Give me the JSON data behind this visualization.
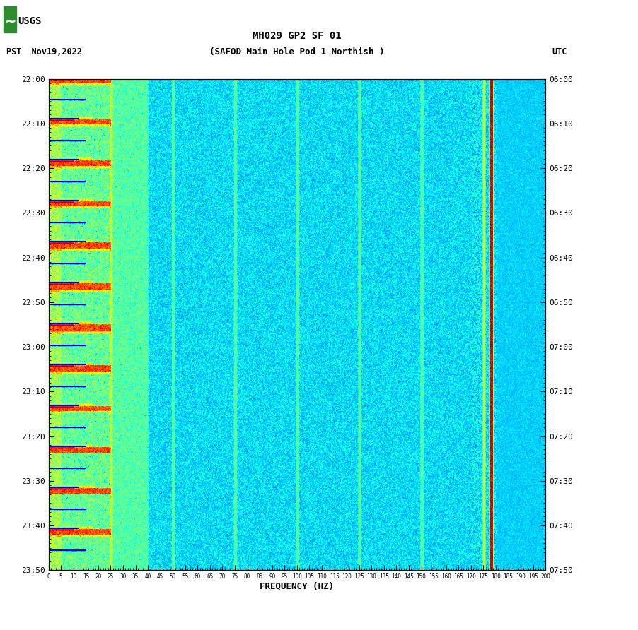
{
  "title_line1": "MH029 GP2 SF 01",
  "title_line2": "(SAFOD Main Hole Pod 1 Northish )",
  "date_label": "PST  Nov19,2022",
  "utc_label": "UTC",
  "xlabel": "FREQUENCY (HZ)",
  "freq_min": 0,
  "freq_max": 200,
  "ytick_pst": [
    "22:00",
    "22:10",
    "22:20",
    "22:30",
    "22:40",
    "22:50",
    "23:00",
    "23:10",
    "23:20",
    "23:30",
    "23:40",
    "23:50"
  ],
  "ytick_utc": [
    "06:00",
    "06:10",
    "06:20",
    "06:30",
    "06:40",
    "06:50",
    "07:00",
    "07:10",
    "07:20",
    "07:30",
    "07:40",
    "07:50"
  ],
  "xtick_labels": [
    "0",
    "5",
    "10",
    "15",
    "20",
    "25",
    "30",
    "35",
    "40",
    "45",
    "50",
    "55",
    "60",
    "65",
    "70",
    "75",
    "80",
    "85",
    "90",
    "95",
    "100",
    "105",
    "110",
    "115",
    "120",
    "125",
    "130",
    "135",
    "140",
    "145",
    "150",
    "155",
    "160",
    "165",
    "170",
    "175",
    "180",
    "185",
    "190",
    "195",
    "200"
  ],
  "background_color": "#ffffff",
  "fig_width": 9.02,
  "fig_height": 8.92,
  "dpi": 100,
  "seed": 42,
  "n_time": 600,
  "n_freq": 800,
  "colormap": "jet",
  "vmin": 0.0,
  "vmax": 1.0,
  "base_blue_min": 0.28,
  "base_blue_max": 0.42,
  "low_freq_cutoff_hz": 30,
  "low_freq_boost": 0.12,
  "event_interval": 50,
  "event_freq_hz": 25,
  "event_bright_freq_hz": 10,
  "vertical_line_freqs": [
    25,
    50,
    75,
    100,
    125,
    150,
    175
  ],
  "red_line_freq": 178,
  "cyan_line_freq": 175,
  "noise_scale": 0.06
}
